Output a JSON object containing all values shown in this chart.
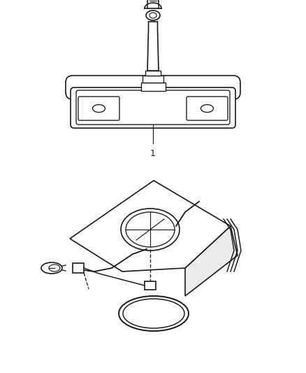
{
  "background_color": "#ffffff",
  "line_color": "#1a1a1a",
  "line_width": 1.2,
  "label_1": "1",
  "label_fontsize": 9,
  "figure_width": 4.38,
  "figure_height": 5.33,
  "dpi": 100
}
